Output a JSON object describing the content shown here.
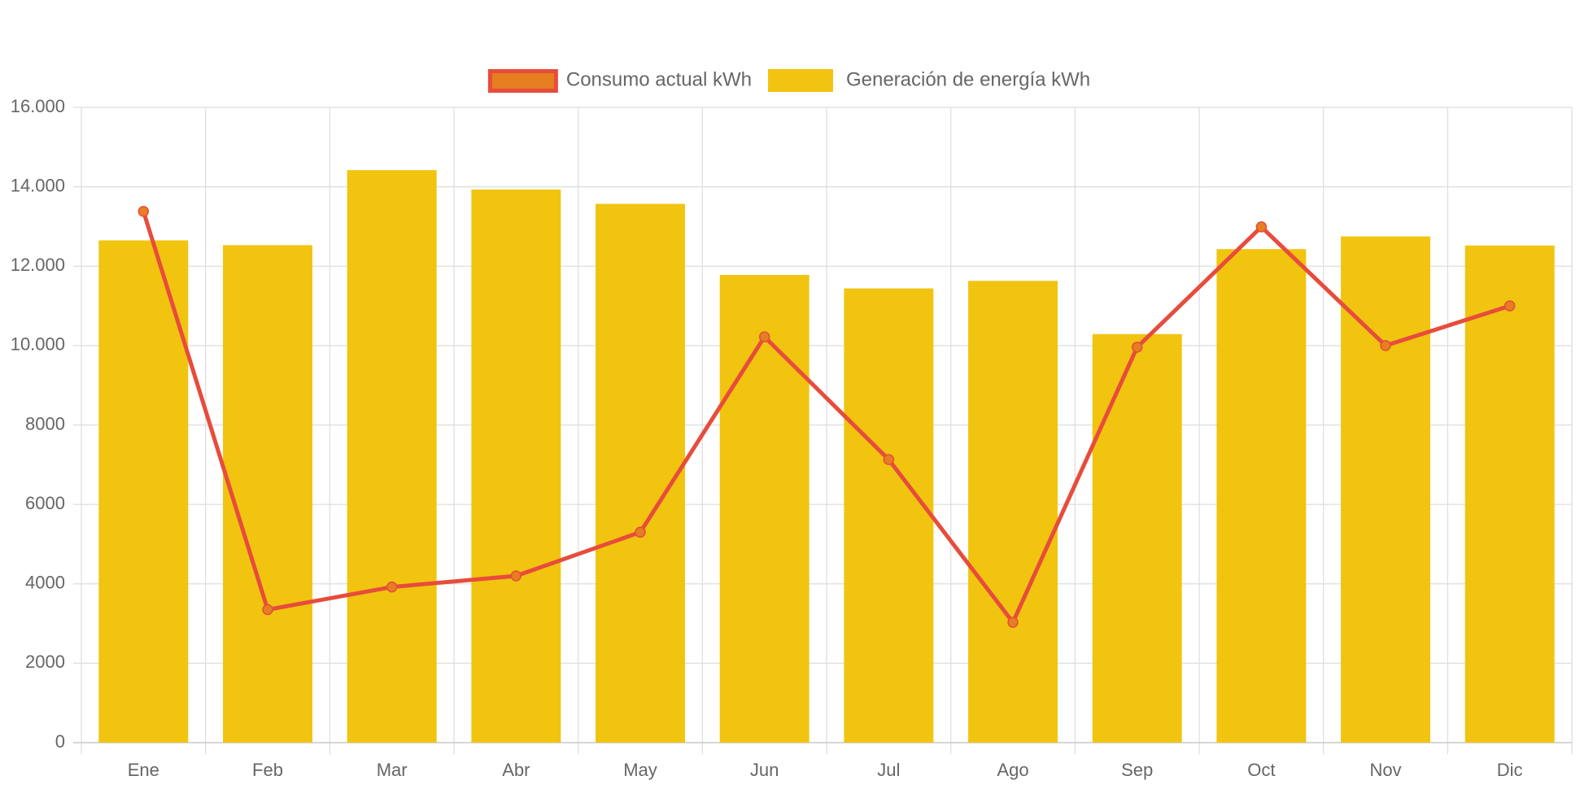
{
  "chart_data": {
    "type": "bar",
    "categories": [
      "Ene",
      "Feb",
      "Mar",
      "Abr",
      "May",
      "Jun",
      "Jul",
      "Ago",
      "Sep",
      "Oct",
      "Nov",
      "Dic"
    ],
    "series": [
      {
        "name": "Consumo actual kWh",
        "type": "line",
        "color": "#e74c3c",
        "point_color": "#e67e22",
        "values": [
          13380,
          3350,
          3920,
          4200,
          5300,
          10220,
          7130,
          3030,
          9960,
          12990,
          10000,
          11000
        ]
      },
      {
        "name": "Generación de energía kWh",
        "type": "bar",
        "color": "#f1c40f",
        "values": [
          12650,
          12530,
          14420,
          13930,
          13570,
          11780,
          11440,
          11630,
          10290,
          12430,
          12750,
          12520
        ]
      }
    ],
    "ylim": [
      0,
      16000
    ],
    "yticks": [
      0,
      2000,
      4000,
      6000,
      8000,
      {
        "value": 10000,
        "label": "10.000"
      },
      {
        "value": 12000,
        "label": "12.000"
      },
      {
        "value": 14000,
        "label": "14.000"
      },
      {
        "value": 16000,
        "label": "16.000"
      }
    ],
    "grid": true,
    "legend": "top"
  }
}
